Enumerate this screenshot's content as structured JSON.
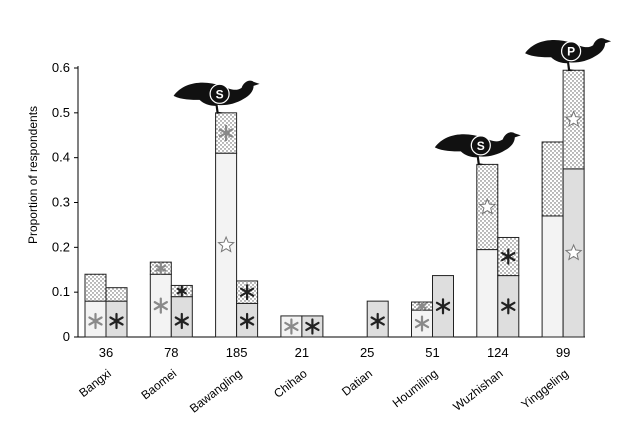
{
  "chart_data": {
    "type": "bar",
    "subtype": "stacked-paired",
    "ylabel": "Proportion of respondents",
    "xlabel": "",
    "ylim": [
      0,
      0.6
    ],
    "yticks": [
      "0",
      "0.1",
      "0.2",
      "0.3",
      "0.4",
      "0.5",
      "0.6"
    ],
    "grid": false,
    "legend": "none",
    "sites": [
      {
        "name": "Bangxi",
        "n": "36",
        "left": {
          "base": 0.08,
          "top": 0.06,
          "base_mark": "grey-asterisk",
          "top_mark": ""
        },
        "right": {
          "base": 0.08,
          "top": 0.03,
          "base_mark": "black-asterisk",
          "top_mark": ""
        }
      },
      {
        "name": "Baomei",
        "n": "78",
        "left": {
          "base": 0.14,
          "top": 0.027,
          "base_mark": "grey-asterisk",
          "top_mark": "grey-asterisk"
        },
        "right": {
          "base": 0.09,
          "top": 0.025,
          "base_mark": "black-asterisk",
          "top_mark": "black-asterisk"
        }
      },
      {
        "name": "Bawangling",
        "n": "185",
        "left": {
          "base": 0.41,
          "top": 0.09,
          "base_mark": "star",
          "top_mark": "grey-asterisk"
        },
        "right": {
          "base": 0.075,
          "top": 0.05,
          "base_mark": "black-asterisk",
          "top_mark": "black-asterisk"
        }
      },
      {
        "name": "Chihao",
        "n": "21",
        "left": {
          "base": 0.047,
          "top": 0,
          "base_mark": "grey-asterisk",
          "top_mark": ""
        },
        "right": {
          "base": 0.047,
          "top": 0,
          "base_mark": "black-asterisk",
          "top_mark": ""
        }
      },
      {
        "name": "Datian",
        "n": "25",
        "left": {
          "base": 0,
          "top": 0,
          "base_mark": "",
          "top_mark": ""
        },
        "right": {
          "base": 0.08,
          "top": 0,
          "base_mark": "black-asterisk",
          "top_mark": ""
        }
      },
      {
        "name": "Houmiling",
        "n": "51",
        "left": {
          "base": 0.06,
          "top": 0.018,
          "base_mark": "grey-asterisk",
          "top_mark": "grey-asterisk"
        },
        "right": {
          "base": 0.137,
          "top": 0,
          "base_mark": "black-asterisk",
          "top_mark": ""
        }
      },
      {
        "name": "Wuzhishan",
        "n": "124",
        "left": {
          "base": 0.195,
          "top": 0.19,
          "base_mark": "",
          "top_mark": "star"
        },
        "right": {
          "base": 0.137,
          "top": 0.085,
          "base_mark": "black-asterisk",
          "top_mark": "black-asterisk"
        }
      },
      {
        "name": "Yinggeling",
        "n": "99",
        "left": {
          "base": 0.27,
          "top": 0.165,
          "base_mark": "",
          "top_mark": ""
        },
        "right": {
          "base": 0.375,
          "top": 0.22,
          "base_mark": "star",
          "top_mark": "star"
        }
      }
    ],
    "bird_markers": [
      {
        "letter": "S",
        "site": "Bawangling",
        "side": "left"
      },
      {
        "letter": "S",
        "site": "Wuzhishan",
        "side": "left"
      },
      {
        "letter": "P",
        "site": "Yinggeling",
        "side": "right"
      }
    ],
    "colors": {
      "left_base": "#f3f3f3",
      "right_base": "#dedede",
      "dotted_fill": "#ffffff",
      "dot_color": "#555555",
      "bar_stroke": "#222222",
      "grey_asterisk": "#8a8a8a",
      "black_asterisk": "#222222",
      "bird": "#111111"
    }
  }
}
